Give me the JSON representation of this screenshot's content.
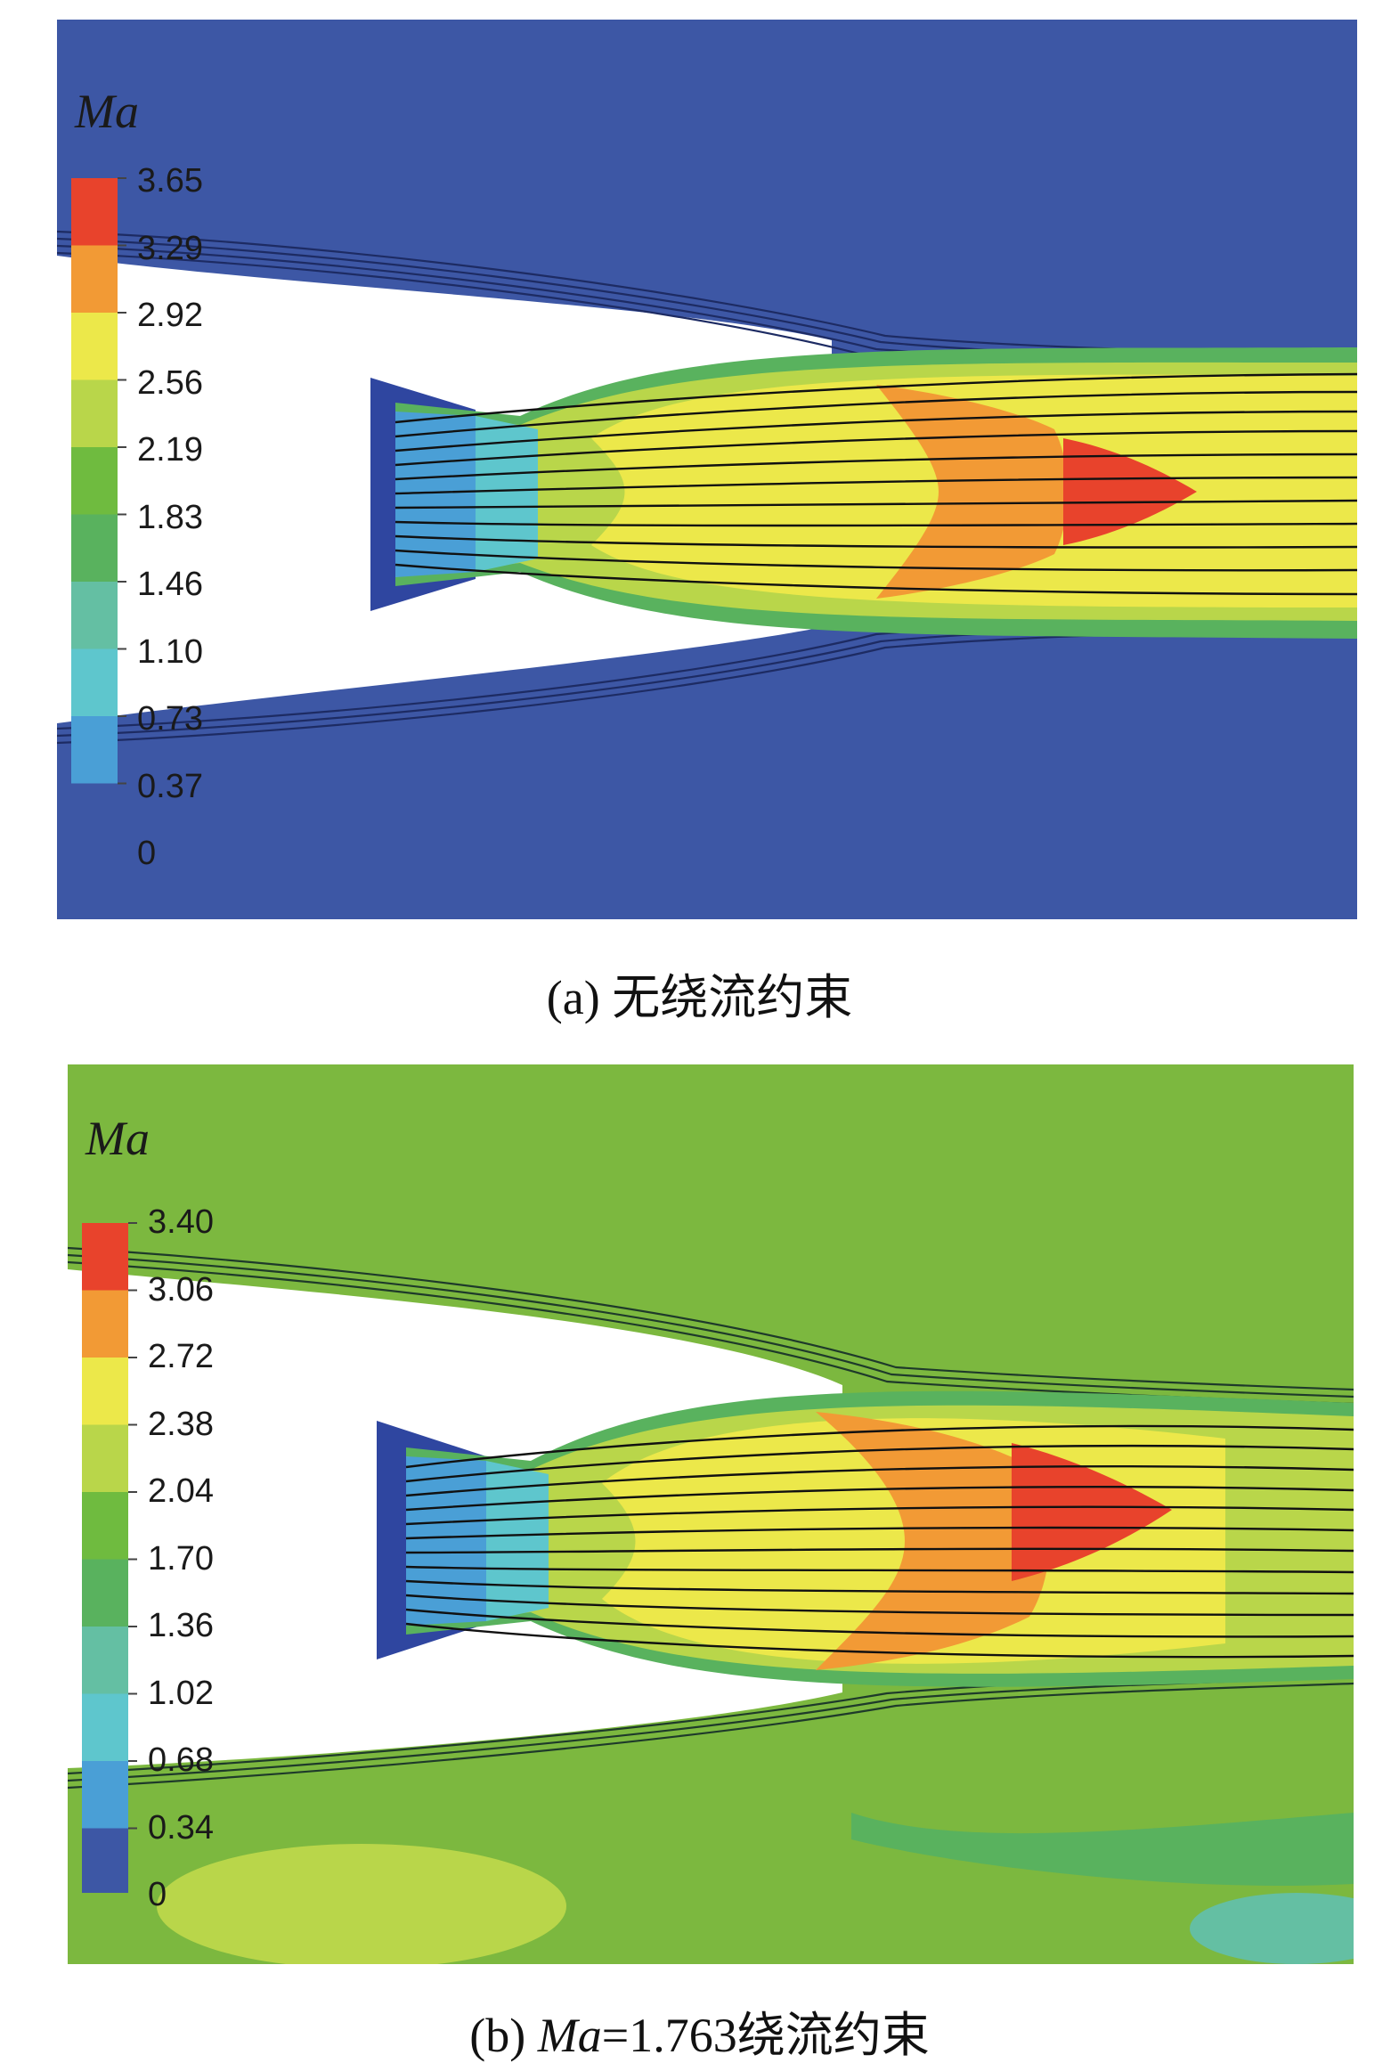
{
  "panels": [
    {
      "id": "a",
      "quantity_label": "Ma",
      "ambient_color": "#3d57a5",
      "colorbar": {
        "labels": [
          "3.65",
          "3.29",
          "2.92",
          "2.56",
          "2.19",
          "1.83",
          "1.46",
          "1.10",
          "0.73",
          "0.37",
          "0"
        ],
        "colors": [
          "#e8432c",
          "#f29a35",
          "#ece84a",
          "#b9d64a",
          "#6fbb3f",
          "#59b25e",
          "#64bfa3",
          "#5ec6cd",
          "#4a9fd6",
          "#3d57a5"
        ]
      },
      "caption": "(a) 无绕流约束"
    },
    {
      "id": "b",
      "quantity_label": "Ma",
      "ambient_color": "#7cb83f",
      "colorbar": {
        "labels": [
          "3.40",
          "3.06",
          "2.72",
          "2.38",
          "2.04",
          "1.70",
          "1.36",
          "1.02",
          "0.68",
          "0.34",
          "0"
        ],
        "colors": [
          "#e8432c",
          "#f29a35",
          "#ece84a",
          "#b9d64a",
          "#6fbb3f",
          "#59b25e",
          "#64bfa3",
          "#5ec6cd",
          "#4a9fd6",
          "#3d57a5"
        ]
      },
      "caption_prefix": "(b) ",
      "caption_var": "Ma",
      "caption_suffix": "=1.763绕流约束"
    }
  ]
}
